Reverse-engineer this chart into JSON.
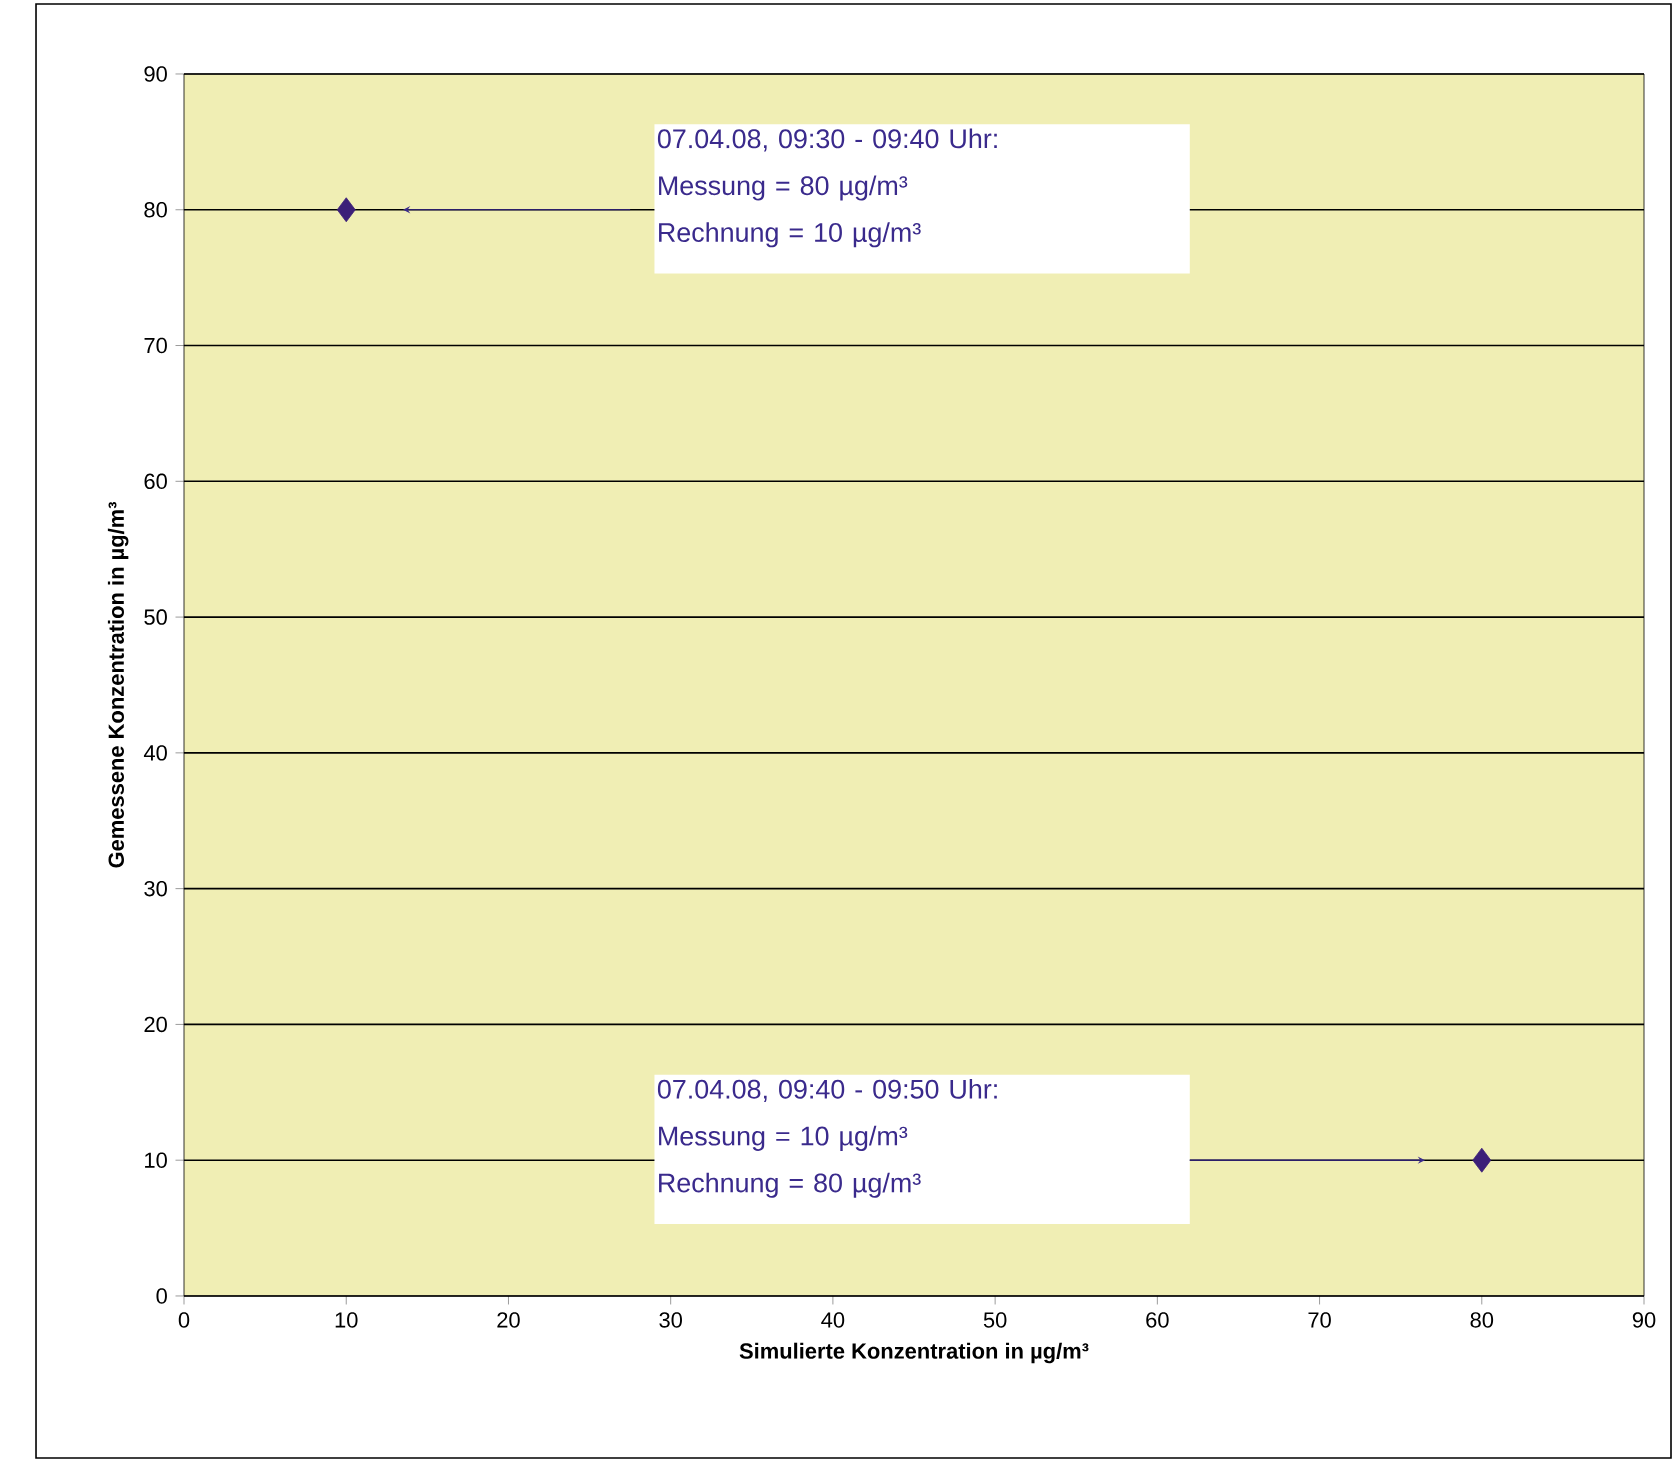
{
  "chart_data": {
    "type": "scatter",
    "xlabel": "Simulierte Konzentration in µg/m³",
    "ylabel": "Gemessene Konzentration in µg/m³",
    "x": [
      10,
      80
    ],
    "series": [
      {
        "color": "#3c1f78",
        "values": [
          80,
          10
        ]
      }
    ],
    "marker": "diamond",
    "grid": "y",
    "xlim": [
      0,
      90
    ],
    "ylim": [
      0,
      90
    ],
    "xticks": [
      0,
      10,
      20,
      30,
      40,
      50,
      60,
      70,
      80,
      90
    ],
    "yticks": [
      0,
      10,
      20,
      30,
      40,
      50,
      60,
      70,
      80,
      90
    ],
    "annotations": [
      "07.04.08, 09:30 - 09:40 Uhr:",
      "Messung = 80 µg/m³",
      "Rechnung = 10 µg/m³",
      "07.04.08, 09:40 - 09:50 Uhr:",
      "Messung = 10 µg/m³",
      "Rechnung = 80 µg/m³"
    ]
  }
}
